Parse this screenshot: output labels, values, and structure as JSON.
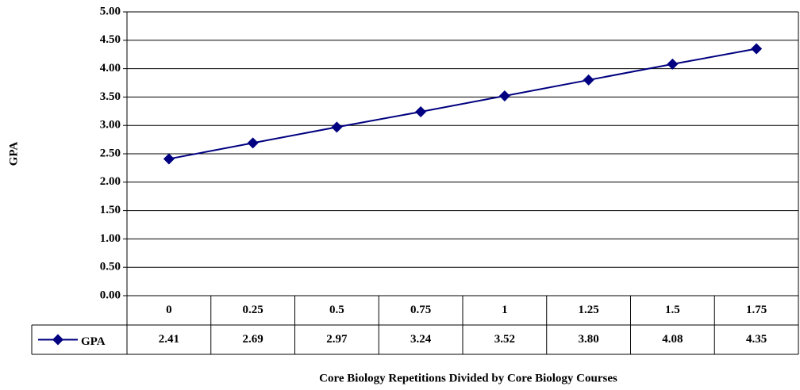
{
  "chart_data": {
    "type": "line",
    "y_label": "GPA",
    "x_label": "Core Biology Repetitions Divided by Core Biology Courses",
    "categories": [
      "0",
      "0.25",
      "0.5",
      "0.75",
      "1",
      "1.25",
      "1.5",
      "1.75"
    ],
    "series": [
      {
        "name": "GPA",
        "color": "#000080",
        "values": [
          2.41,
          2.69,
          2.97,
          3.24,
          3.52,
          3.8,
          4.08,
          4.35
        ],
        "value_labels": [
          "2.41",
          "2.69",
          "2.97",
          "3.24",
          "3.52",
          "3.80",
          "4.08",
          "4.35"
        ]
      }
    ],
    "ylim": [
      0,
      5
    ],
    "yticks": [
      {
        "value": 0,
        "label": "0.00"
      },
      {
        "value": 0.5,
        "label": "0.50"
      },
      {
        "value": 1,
        "label": "1.00"
      },
      {
        "value": 1.5,
        "label": "1.50"
      },
      {
        "value": 2,
        "label": "2.00"
      },
      {
        "value": 2.5,
        "label": "2.50"
      },
      {
        "value": 3,
        "label": "3.00"
      },
      {
        "value": 3.5,
        "label": "3.50"
      },
      {
        "value": 4,
        "label": "4.00"
      },
      {
        "value": 4.5,
        "label": "4.50"
      },
      {
        "value": 5,
        "label": "5.00"
      }
    ],
    "grid": true
  }
}
